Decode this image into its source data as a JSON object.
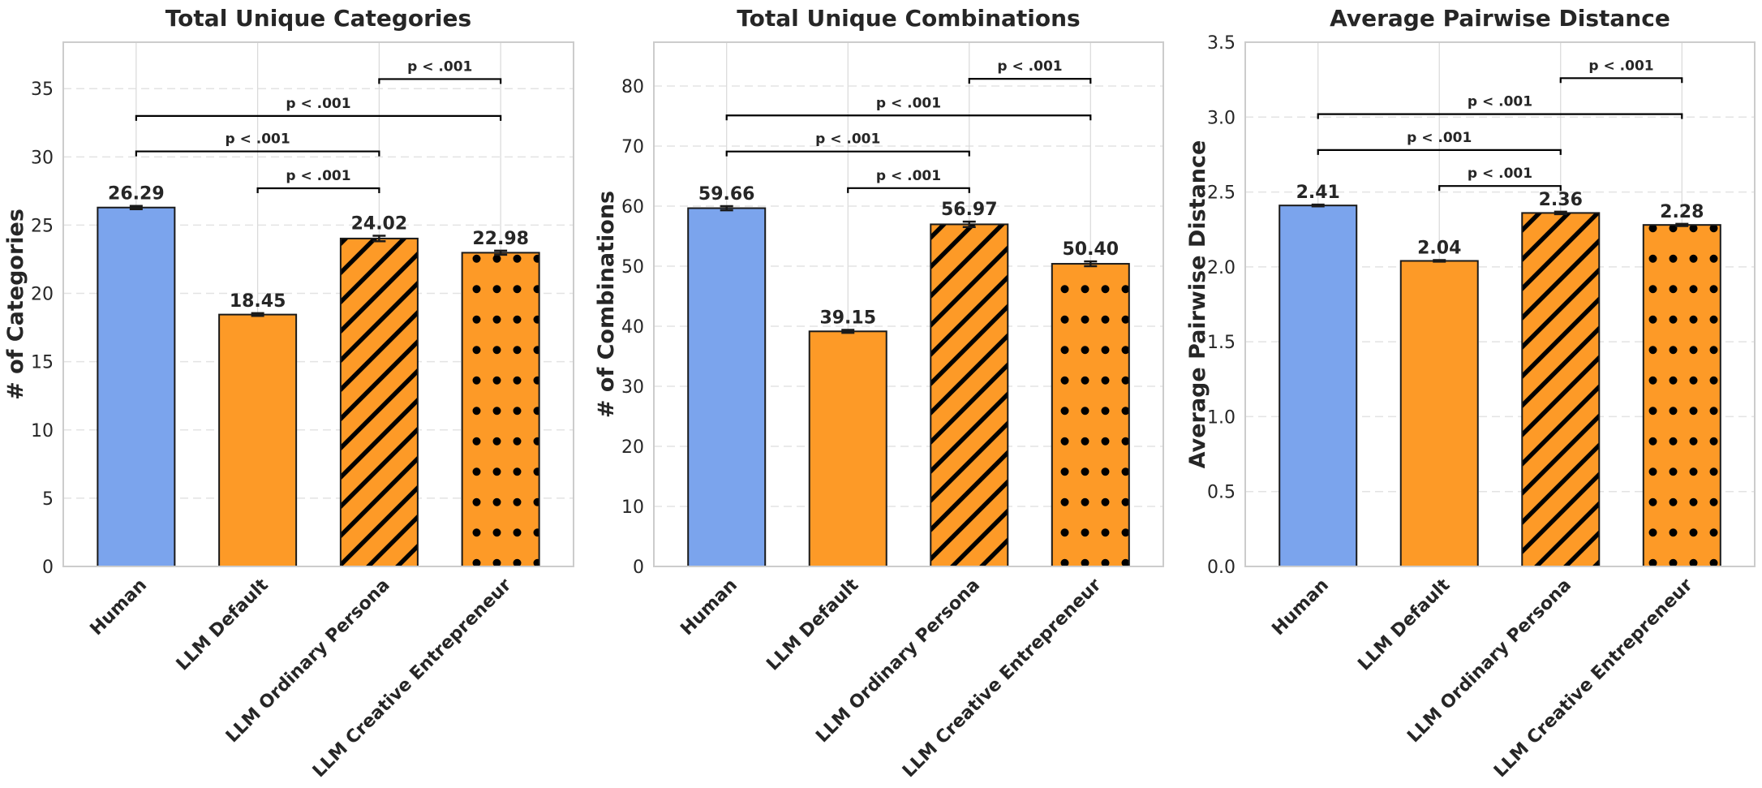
{
  "colors": {
    "human": "#7ba4ed",
    "llm": "#fd9a27",
    "pattern_ink": "#000000"
  },
  "chart_data": [
    {
      "type": "bar",
      "title": "Total Unique Categories",
      "ylabel": "# of Categories",
      "xlabel": "",
      "categories": [
        "Human",
        "LLM Default",
        "LLM Ordinary Persona",
        "LLM Creative Entrepreneur"
      ],
      "values": [
        26.29,
        18.45,
        24.02,
        22.98
      ],
      "value_labels": [
        "26.29",
        "18.45",
        "24.02",
        "22.98"
      ],
      "errors": [
        0.12,
        0.1,
        0.2,
        0.15
      ],
      "patterns": [
        "none",
        "none",
        "hatch",
        "dots"
      ],
      "ylim": [
        0,
        38.4
      ],
      "yticks": [
        0,
        5,
        10,
        15,
        20,
        25,
        30,
        35
      ],
      "ytick_labels": [
        "0",
        "5",
        "10",
        "15",
        "20",
        "25",
        "30",
        "35"
      ],
      "grid": true,
      "significance": [
        {
          "from": 1,
          "to": 2,
          "label": "p < .001",
          "level": 27.7
        },
        {
          "from": 0,
          "to": 2,
          "label": "p < .001",
          "level": 30.4
        },
        {
          "from": 0,
          "to": 3,
          "label": "p < .001",
          "level": 33.0
        },
        {
          "from": 2,
          "to": 3,
          "label": "p < .001",
          "level": 35.7
        }
      ]
    },
    {
      "type": "bar",
      "title": "Total Unique Combinations",
      "ylabel": "# of Combinations",
      "xlabel": "",
      "categories": [
        "Human",
        "LLM Default",
        "LLM Ordinary Persona",
        "LLM Creative Entrepreneur"
      ],
      "values": [
        59.66,
        39.15,
        56.97,
        50.4
      ],
      "value_labels": [
        "59.66",
        "39.15",
        "56.97",
        "50.40"
      ],
      "errors": [
        0.35,
        0.25,
        0.45,
        0.4
      ],
      "patterns": [
        "none",
        "none",
        "hatch",
        "dots"
      ],
      "ylim": [
        0,
        87.3
      ],
      "yticks": [
        0,
        10,
        20,
        30,
        40,
        50,
        60,
        70,
        80
      ],
      "ytick_labels": [
        "0",
        "10",
        "20",
        "30",
        "40",
        "50",
        "60",
        "70",
        "80"
      ],
      "grid": true,
      "significance": [
        {
          "from": 1,
          "to": 2,
          "label": "p < .001",
          "level": 63.0
        },
        {
          "from": 0,
          "to": 2,
          "label": "p < .001",
          "level": 69.1
        },
        {
          "from": 0,
          "to": 3,
          "label": "p < .001",
          "level": 75.1
        },
        {
          "from": 2,
          "to": 3,
          "label": "p < .001",
          "level": 81.2
        }
      ]
    },
    {
      "type": "bar",
      "title": "Average Pairwise Distance",
      "ylabel": "Average Pairwise Distance",
      "xlabel": "",
      "categories": [
        "Human",
        "LLM Default",
        "LLM Ordinary Persona",
        "LLM Creative Entrepreneur"
      ],
      "values": [
        2.41,
        2.04,
        2.36,
        2.28
      ],
      "value_labels": [
        "2.41",
        "2.04",
        "2.36",
        "2.28"
      ],
      "errors": [
        0.006,
        0.005,
        0.008,
        0.007
      ],
      "patterns": [
        "none",
        "none",
        "hatch",
        "dots"
      ],
      "ylim": [
        0,
        3.5
      ],
      "yticks": [
        0,
        0.5,
        1,
        1.5,
        2,
        2.5,
        3,
        3.5
      ],
      "ytick_labels": [
        "0.0",
        "0.5",
        "1.0",
        "1.5",
        "2.0",
        "2.5",
        "3.0",
        "3.5"
      ],
      "grid": true,
      "significance": [
        {
          "from": 1,
          "to": 2,
          "label": "p < .001",
          "level": 2.54
        },
        {
          "from": 0,
          "to": 2,
          "label": "p < .001",
          "level": 2.78
        },
        {
          "from": 0,
          "to": 3,
          "label": "p < .001",
          "level": 3.02
        },
        {
          "from": 2,
          "to": 3,
          "label": "p < .001",
          "level": 3.26
        }
      ]
    }
  ]
}
